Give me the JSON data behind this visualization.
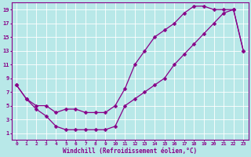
{
  "xlabel": "Windchill (Refroidissement éolien,°C)",
  "bg_color": "#b8e8e8",
  "line_color": "#880088",
  "grid_color": "#ffffff",
  "xlim": [
    -0.5,
    23.5
  ],
  "ylim": [
    0,
    20
  ],
  "xticks": [
    0,
    1,
    2,
    3,
    4,
    5,
    6,
    7,
    8,
    9,
    10,
    11,
    12,
    13,
    14,
    15,
    16,
    17,
    18,
    19,
    20,
    21,
    22,
    23
  ],
  "yticks": [
    1,
    3,
    5,
    7,
    9,
    11,
    13,
    15,
    17,
    19
  ],
  "line1_x": [
    0,
    1,
    2,
    3,
    4,
    5,
    6,
    7,
    8,
    9,
    10,
    11,
    12,
    13,
    14,
    15,
    16,
    17,
    18,
    19,
    20,
    21,
    22,
    23
  ],
  "line1_y": [
    8,
    6,
    5,
    5,
    4,
    4.5,
    4.5,
    4,
    4,
    4,
    5,
    7.5,
    11,
    13,
    15,
    16,
    17,
    18.5,
    19.5,
    19.5,
    19,
    19,
    19,
    13
  ],
  "line2_x": [
    0,
    1,
    2,
    3,
    4,
    5,
    6,
    7,
    8,
    9,
    10,
    11,
    12,
    13,
    14,
    15,
    16,
    17,
    18,
    19,
    20,
    21,
    22,
    23
  ],
  "line2_y": [
    8,
    6,
    4.5,
    3.5,
    2,
    1.5,
    1.5,
    1.5,
    1.5,
    1.5,
    2,
    5,
    6,
    7,
    8,
    9,
    11,
    12.5,
    14,
    15.5,
    17,
    18.5,
    19,
    13
  ],
  "marker": "D",
  "marker_size": 2.5,
  "linewidth": 0.9,
  "tick_fontsize": 4.5,
  "xlabel_fontsize": 5.5
}
